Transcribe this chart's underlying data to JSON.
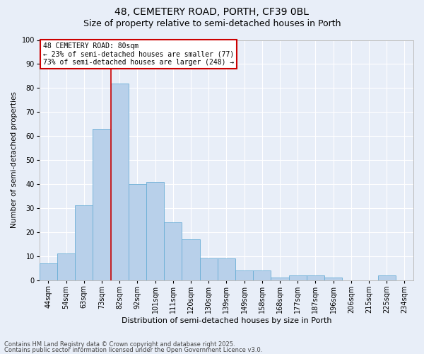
{
  "title": "48, CEMETERY ROAD, PORTH, CF39 0BL",
  "subtitle": "Size of property relative to semi-detached houses in Porth",
  "xlabel": "Distribution of semi-detached houses by size in Porth",
  "ylabel": "Number of semi-detached properties",
  "categories": [
    "44sqm",
    "54sqm",
    "63sqm",
    "73sqm",
    "82sqm",
    "92sqm",
    "101sqm",
    "111sqm",
    "120sqm",
    "130sqm",
    "139sqm",
    "149sqm",
    "158sqm",
    "168sqm",
    "177sqm",
    "187sqm",
    "196sqm",
    "206sqm",
    "215sqm",
    "225sqm",
    "234sqm"
  ],
  "values": [
    7,
    11,
    31,
    63,
    82,
    40,
    41,
    24,
    17,
    9,
    9,
    4,
    4,
    1,
    2,
    2,
    1,
    0,
    0,
    2,
    0
  ],
  "bar_color": "#b8d0ea",
  "bar_edge_color": "#6aaed6",
  "background_color": "#e8eef8",
  "grid_color": "#ffffff",
  "red_line_x": 3.5,
  "annotation_title": "48 CEMETERY ROAD: 80sqm",
  "annotation_line1": "← 23% of semi-detached houses are smaller (77)",
  "annotation_line2": "73% of semi-detached houses are larger (248) →",
  "annotation_box_color": "#ffffff",
  "annotation_box_edge": "#cc0000",
  "red_line_color": "#cc0000",
  "ylim": [
    0,
    100
  ],
  "yticks": [
    0,
    10,
    20,
    30,
    40,
    50,
    60,
    70,
    80,
    90,
    100
  ],
  "footnote1": "Contains HM Land Registry data © Crown copyright and database right 2025.",
  "footnote2": "Contains public sector information licensed under the Open Government Licence v3.0.",
  "title_fontsize": 10,
  "subtitle_fontsize": 9,
  "annot_fontsize": 7,
  "xlabel_fontsize": 8,
  "ylabel_fontsize": 7.5,
  "tick_fontsize": 7
}
